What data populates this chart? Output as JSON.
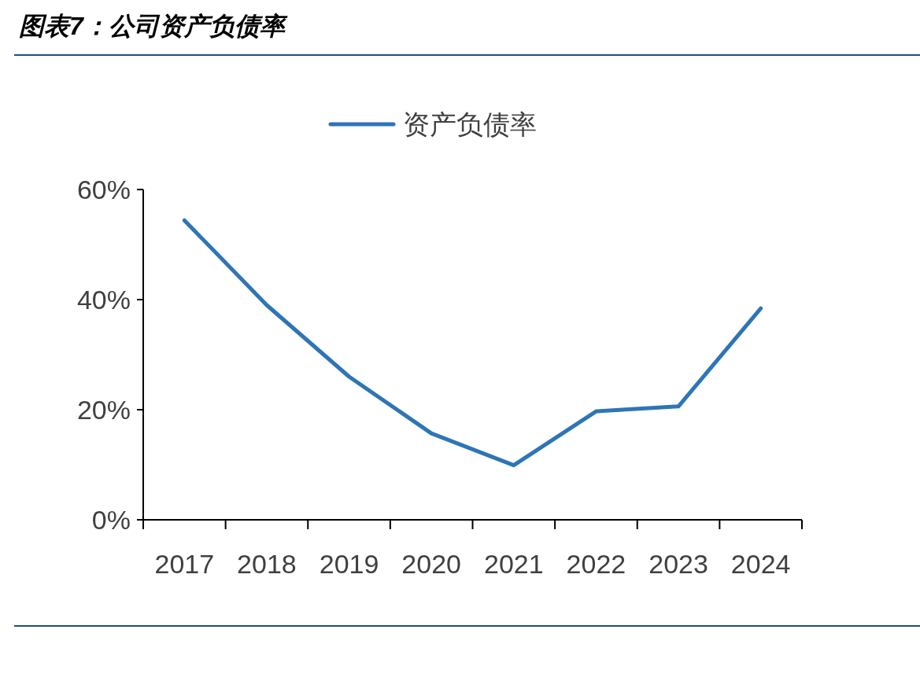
{
  "chart_data": {
    "type": "line",
    "title": "图表7：公司资产负债率",
    "categories": [
      "2017",
      "2018",
      "2019",
      "2020",
      "2021",
      "2022",
      "2023",
      "2024"
    ],
    "series": [
      {
        "name": "资产负债率",
        "color": "#2e75b6",
        "values": [
          54.4,
          39.0,
          26.0,
          15.7,
          9.9,
          19.7,
          20.6,
          38.4
        ]
      }
    ],
    "ylim": [
      0,
      60
    ],
    "yticks": [
      {
        "value": 0,
        "label": "0%"
      },
      {
        "value": 20,
        "label": "20%"
      },
      {
        "value": 40,
        "label": "40%"
      },
      {
        "value": 60,
        "label": "60%"
      }
    ],
    "legend": "top",
    "grid": false
  }
}
